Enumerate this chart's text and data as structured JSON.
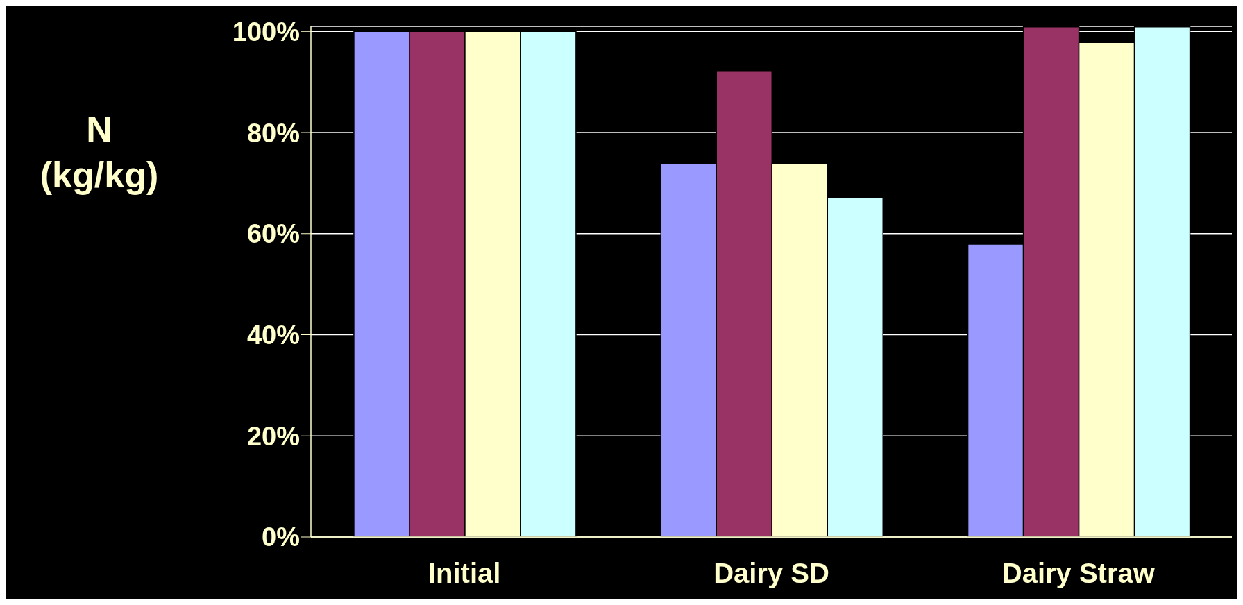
{
  "chart_data": {
    "type": "bar",
    "ylabel": "N (kg/kg)",
    "categories": [
      "Initial",
      "Dairy SD",
      "Dairy Straw"
    ],
    "series": [
      {
        "color": "#9999ff",
        "values": [
          100,
          73.8,
          57.9
        ]
      },
      {
        "color": "#993366",
        "values": [
          100,
          92.1,
          100.9
        ]
      },
      {
        "color": "#ffffcc",
        "values": [
          100,
          73.8,
          97.8
        ]
      },
      {
        "color": "#ccffff",
        "values": [
          100,
          67.1,
          100.9
        ]
      }
    ],
    "ylim": [
      0,
      101
    ],
    "yticks": [
      {
        "value": 0,
        "label": "0%"
      },
      {
        "value": 20,
        "label": "20%"
      },
      {
        "value": 40,
        "label": "40%"
      },
      {
        "value": 60,
        "label": "60%"
      },
      {
        "value": 80,
        "label": "80%"
      },
      {
        "value": 100,
        "label": "100%"
      }
    ],
    "grid": "y",
    "legend": false
  }
}
